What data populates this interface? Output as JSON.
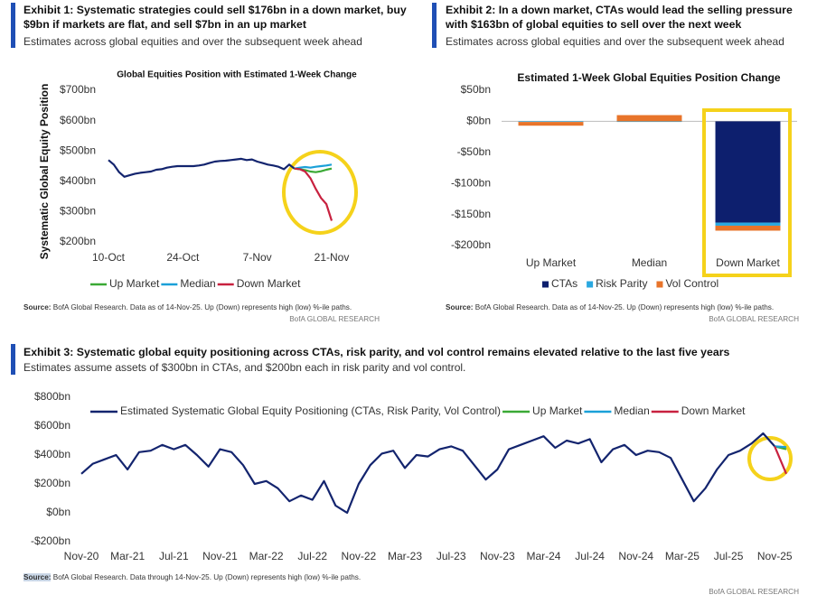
{
  "exhibits": [
    {
      "title": "Exhibit 1: Systematic strategies could sell $176bn in a down market, buy $9bn if markets are flat, and sell $7bn in an up market",
      "subtitle": "Estimates across global equities and over the subsequent week ahead",
      "source_label": "Source:",
      "source": "BofA Global Research.  Data as of 14-Nov-25. Up (Down) represents high (low) %-ile paths.",
      "credit": "BofA GLOBAL RESEARCH"
    },
    {
      "title": "Exhibit 2: In a down market, CTAs would lead the selling pressure with $163bn of global equities to sell over the next week",
      "subtitle": "Estimates across global equities and over the subsequent week ahead",
      "source_label": "Source:",
      "source": "BofA Global Research. Data as of 14-Nov-25. Up (Down) represents high (low) %-ile paths.",
      "credit": "BofA GLOBAL RESEARCH"
    },
    {
      "title": "Exhibit 3: Systematic global equity positioning across CTAs, risk parity, and vol control remains elevated relative to the last five years",
      "subtitle": "Estimates assume assets of $300bn in CTAs, and $200bn each in risk parity and vol control.",
      "source_label": "Source:",
      "source": "BofA Global Research.  Data through 14-Nov-25. Up (Down) represents high (low) %-ile paths.",
      "credit": "BofA GLOBAL RESEARCH"
    }
  ],
  "chart_data": [
    {
      "type": "line",
      "title": "Global Equities Position with Estimated 1-Week Change",
      "y_label": "Systematic Global Equity Position",
      "categories": [
        "10-Oct",
        null,
        null,
        null,
        null,
        null,
        null,
        null,
        null,
        null,
        null,
        null,
        null,
        null,
        "24-Oct",
        null,
        null,
        null,
        null,
        null,
        null,
        null,
        null,
        null,
        null,
        null,
        null,
        null,
        "7-Nov",
        null,
        null,
        null,
        null,
        null,
        null,
        null,
        null,
        null,
        null,
        null,
        null,
        null,
        "21-Nov"
      ],
      "series": [
        {
          "color": "#13246e",
          "values": [
            470,
            455,
            430,
            415,
            420,
            425,
            428,
            430,
            432,
            438,
            440,
            445,
            448,
            450,
            450,
            450,
            450,
            452,
            455,
            460,
            465,
            467,
            468,
            470,
            472,
            474,
            470,
            472,
            465,
            460,
            455,
            452,
            448,
            440,
            455,
            442,
            null,
            null,
            null,
            null,
            null,
            null,
            null
          ]
        },
        {
          "name": "Up Market",
          "color": "#3aa935",
          "values": [
            null,
            null,
            null,
            null,
            null,
            null,
            null,
            null,
            null,
            null,
            null,
            null,
            null,
            null,
            null,
            null,
            null,
            null,
            null,
            null,
            null,
            null,
            null,
            null,
            null,
            null,
            null,
            null,
            null,
            null,
            null,
            null,
            null,
            null,
            null,
            442,
            440,
            437,
            432,
            430,
            433,
            438,
            442
          ]
        },
        {
          "name": "Median",
          "color": "#1aa0d8",
          "values": [
            null,
            null,
            null,
            null,
            null,
            null,
            null,
            null,
            null,
            null,
            null,
            null,
            null,
            null,
            null,
            null,
            null,
            null,
            null,
            null,
            null,
            null,
            null,
            null,
            null,
            null,
            null,
            null,
            null,
            null,
            null,
            null,
            null,
            null,
            null,
            442,
            445,
            447,
            445,
            448,
            450,
            452,
            455
          ]
        },
        {
          "name": "Down Market",
          "color": "#c8213f",
          "values": [
            null,
            null,
            null,
            null,
            null,
            null,
            null,
            null,
            null,
            null,
            null,
            null,
            null,
            null,
            null,
            null,
            null,
            null,
            null,
            null,
            null,
            null,
            null,
            null,
            null,
            null,
            null,
            null,
            null,
            null,
            null,
            null,
            null,
            null,
            null,
            442,
            440,
            432,
            410,
            375,
            345,
            325,
            270
          ]
        }
      ],
      "ylim": [
        200,
        700
      ],
      "yticks": [
        {
          "value": 200,
          "label": "$200bn"
        },
        {
          "value": 300,
          "label": "$300bn"
        },
        {
          "value": 400,
          "label": "$400bn"
        },
        {
          "value": 500,
          "label": "$500bn"
        },
        {
          "value": 600,
          "label": "$600bn"
        },
        {
          "value": 700,
          "label": "$700bn"
        }
      ],
      "grid": false
    },
    {
      "type": "bar",
      "stacked": true,
      "title": "Estimated 1-Week Global Equities Position Change",
      "categories": [
        "Up Market",
        "Median",
        "Down Market"
      ],
      "series": [
        {
          "name": "CTAs",
          "color": "#0d1f6e",
          "values": [
            0,
            0,
            -163
          ]
        },
        {
          "name": "Risk Parity",
          "color": "#2aa8e0",
          "values": [
            -1,
            -1,
            -5
          ]
        },
        {
          "name": "Vol Control",
          "color": "#e8742a",
          "values": [
            -6,
            10,
            -8
          ]
        }
      ],
      "ylim": [
        -200,
        50
      ],
      "yticks": [
        {
          "value": 50,
          "label": "$50bn"
        },
        {
          "value": 0,
          "label": "$0bn"
        },
        {
          "value": -50,
          "label": "-$50bn"
        },
        {
          "value": -100,
          "label": "-$100bn"
        },
        {
          "value": -150,
          "label": "-$150bn"
        },
        {
          "value": -200,
          "label": "-$200bn"
        }
      ],
      "grid": false
    },
    {
      "type": "line",
      "categories": [
        "Nov-20",
        null,
        null,
        null,
        "Mar-21",
        null,
        null,
        null,
        "Jul-21",
        null,
        null,
        null,
        "Nov-21",
        null,
        null,
        null,
        "Mar-22",
        null,
        null,
        null,
        "Jul-22",
        null,
        null,
        null,
        "Nov-22",
        null,
        null,
        null,
        "Mar-23",
        null,
        null,
        null,
        "Jul-23",
        null,
        null,
        null,
        "Nov-23",
        null,
        null,
        null,
        "Mar-24",
        null,
        null,
        null,
        "Jul-24",
        null,
        null,
        null,
        "Nov-24",
        null,
        null,
        null,
        "Mar-25",
        null,
        null,
        null,
        "Jul-25",
        null,
        null,
        null,
        "Nov-25",
        null
      ],
      "series": [
        {
          "name": "Estimated Systematic Global Equity Positioning (CTAs, Risk Parity, Vol Control)",
          "color": "#13246e",
          "values": [
            270,
            340,
            370,
            400,
            300,
            420,
            430,
            470,
            440,
            470,
            400,
            320,
            440,
            420,
            330,
            200,
            220,
            170,
            80,
            120,
            90,
            220,
            50,
            0,
            200,
            330,
            410,
            430,
            310,
            400,
            390,
            440,
            460,
            430,
            330,
            230,
            300,
            440,
            470,
            500,
            530,
            450,
            500,
            480,
            510,
            350,
            440,
            470,
            400,
            430,
            420,
            380,
            230,
            80,
            170,
            300,
            400,
            430,
            480,
            550,
            460,
            null
          ]
        },
        {
          "name": "Up Market",
          "color": "#3aa935",
          "values": [
            null,
            null,
            null,
            null,
            null,
            null,
            null,
            null,
            null,
            null,
            null,
            null,
            null,
            null,
            null,
            null,
            null,
            null,
            null,
            null,
            null,
            null,
            null,
            null,
            null,
            null,
            null,
            null,
            null,
            null,
            null,
            null,
            null,
            null,
            null,
            null,
            null,
            null,
            null,
            null,
            null,
            null,
            null,
            null,
            null,
            null,
            null,
            null,
            null,
            null,
            null,
            null,
            null,
            null,
            null,
            null,
            null,
            null,
            null,
            null,
            460,
            440
          ]
        },
        {
          "name": "Median",
          "color": "#1aa0d8",
          "values": [
            null,
            null,
            null,
            null,
            null,
            null,
            null,
            null,
            null,
            null,
            null,
            null,
            null,
            null,
            null,
            null,
            null,
            null,
            null,
            null,
            null,
            null,
            null,
            null,
            null,
            null,
            null,
            null,
            null,
            null,
            null,
            null,
            null,
            null,
            null,
            null,
            null,
            null,
            null,
            null,
            null,
            null,
            null,
            null,
            null,
            null,
            null,
            null,
            null,
            null,
            null,
            null,
            null,
            null,
            null,
            null,
            null,
            null,
            null,
            null,
            460,
            455
          ]
        },
        {
          "name": "Down Market",
          "color": "#c8213f",
          "values": [
            null,
            null,
            null,
            null,
            null,
            null,
            null,
            null,
            null,
            null,
            null,
            null,
            null,
            null,
            null,
            null,
            null,
            null,
            null,
            null,
            null,
            null,
            null,
            null,
            null,
            null,
            null,
            null,
            null,
            null,
            null,
            null,
            null,
            null,
            null,
            null,
            null,
            null,
            null,
            null,
            null,
            null,
            null,
            null,
            null,
            null,
            null,
            null,
            null,
            null,
            null,
            null,
            null,
            null,
            null,
            null,
            null,
            null,
            null,
            null,
            460,
            270
          ]
        }
      ],
      "ylim": [
        -200,
        800
      ],
      "yticks": [
        {
          "value": -200,
          "label": "-$200bn"
        },
        {
          "value": 0,
          "label": "$0bn"
        },
        {
          "value": 200,
          "label": "$200bn"
        },
        {
          "value": 400,
          "label": "$400bn"
        },
        {
          "value": 600,
          "label": "$600bn"
        },
        {
          "value": 800,
          "label": "$800bn"
        }
      ],
      "grid": false
    }
  ]
}
